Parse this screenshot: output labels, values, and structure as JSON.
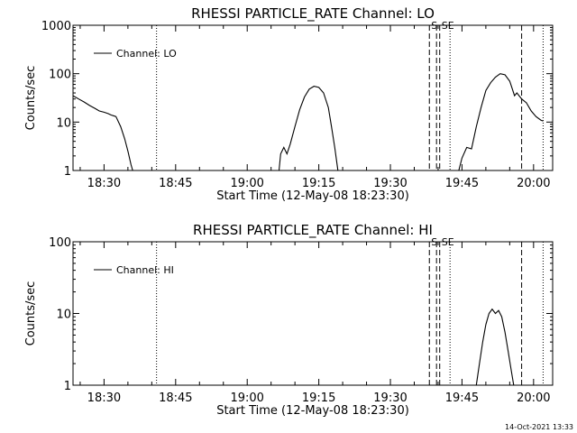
{
  "footer_timestamp": "14-Oct-2021 13:33",
  "chart_data": [
    {
      "type": "line",
      "title": "RHESSI PARTICLE_RATE Channel: LO",
      "xlabel": "Start Time (12-May-08 18:23:30)",
      "ylabel": "Counts/sec",
      "y_scale": "log",
      "ylim": [
        1,
        1000
      ],
      "xlim": [
        "18:23:30",
        "20:04:00"
      ],
      "x_ticks": [
        "18:30",
        "18:45",
        "19:00",
        "19:15",
        "19:30",
        "19:45",
        "20:00"
      ],
      "y_ticks": [
        "1",
        "10",
        "100",
        "1000"
      ],
      "legend": {
        "position": "top-left",
        "entries": [
          "Channel: LO"
        ]
      },
      "annotations": [
        {
          "label": "S",
          "x": "19:38:10"
        },
        {
          "label": "SE",
          "x": "19:40:20"
        }
      ],
      "vlines": [
        {
          "x": "18:41:00",
          "style": "dotted"
        },
        {
          "x": "19:38:10",
          "style": "dashed"
        },
        {
          "x": "19:39:40",
          "style": "dashed"
        },
        {
          "x": "19:40:20",
          "style": "dashed"
        },
        {
          "x": "19:42:30",
          "style": "dotted"
        },
        {
          "x": "19:57:30",
          "style": "dashed"
        },
        {
          "x": "20:02:00",
          "style": "dotted"
        }
      ],
      "series": [
        {
          "name": "Channel: LO",
          "segments": [
            [
              [
                "18:23:30",
                35
              ],
              [
                "18:24:40",
                30
              ],
              [
                "18:25:50",
                26
              ],
              [
                "18:27:00",
                22
              ],
              [
                "18:28:10",
                19
              ],
              [
                "18:29:00",
                17
              ],
              [
                "18:30:00",
                16
              ],
              [
                "18:30:50",
                15
              ],
              [
                "18:31:30",
                14
              ],
              [
                "18:32:30",
                13
              ],
              [
                "18:33:30",
                8
              ],
              [
                "18:34:20",
                4.5
              ],
              [
                "18:35:00",
                2.5
              ],
              [
                "18:35:40",
                1.3
              ],
              [
                "18:36:00",
                1
              ]
            ],
            [
              [
                "19:06:40",
                1
              ],
              [
                "19:07:00",
                2.2
              ],
              [
                "19:07:40",
                3
              ],
              [
                "19:08:20",
                2.2
              ],
              [
                "19:09:00",
                3.5
              ],
              [
                "19:10:00",
                8
              ],
              [
                "19:11:00",
                18
              ],
              [
                "19:12:00",
                33
              ],
              [
                "19:13:00",
                48
              ],
              [
                "19:14:00",
                55
              ],
              [
                "19:15:00",
                52
              ],
              [
                "19:16:00",
                40
              ],
              [
                "19:17:00",
                20
              ],
              [
                "19:17:40",
                8
              ],
              [
                "19:18:20",
                3
              ],
              [
                "19:19:00",
                1
              ]
            ],
            [
              [
                "19:44:20",
                1
              ],
              [
                "19:45:00",
                1.8
              ],
              [
                "19:46:00",
                3
              ],
              [
                "19:47:00",
                2.8
              ],
              [
                "19:48:00",
                8
              ],
              [
                "19:49:00",
                20
              ],
              [
                "19:50:00",
                45
              ],
              [
                "19:51:00",
                65
              ],
              [
                "19:52:00",
                85
              ],
              [
                "19:53:00",
                100
              ],
              [
                "19:54:00",
                95
              ],
              [
                "19:55:00",
                70
              ],
              [
                "19:55:30",
                50
              ],
              [
                "19:56:00",
                35
              ],
              [
                "19:56:30",
                40
              ],
              [
                "19:57:30",
                30
              ],
              [
                "19:58:30",
                25
              ],
              [
                "19:59:30",
                17
              ],
              [
                "20:00:30",
                13
              ],
              [
                "20:01:30",
                11
              ],
              [
                "20:02:00",
                10.5
              ]
            ]
          ]
        }
      ]
    },
    {
      "type": "line",
      "title": "RHESSI PARTICLE_RATE Channel: HI",
      "xlabel": "Start Time (12-May-08 18:23:30)",
      "ylabel": "Counts/sec",
      "y_scale": "log",
      "ylim": [
        1,
        100
      ],
      "xlim": [
        "18:23:30",
        "20:04:00"
      ],
      "x_ticks": [
        "18:30",
        "18:45",
        "19:00",
        "19:15",
        "19:30",
        "19:45",
        "20:00"
      ],
      "y_ticks": [
        "1",
        "10",
        "100"
      ],
      "legend": {
        "position": "top-left",
        "entries": [
          "Channel: HI"
        ]
      },
      "annotations": [
        {
          "label": "S",
          "x": "19:38:10"
        },
        {
          "label": "SE",
          "x": "19:40:20"
        }
      ],
      "vlines": [
        {
          "x": "18:41:00",
          "style": "dotted"
        },
        {
          "x": "19:38:10",
          "style": "dashed"
        },
        {
          "x": "19:39:40",
          "style": "dashed"
        },
        {
          "x": "19:40:20",
          "style": "dashed"
        },
        {
          "x": "19:42:30",
          "style": "dotted"
        },
        {
          "x": "19:57:30",
          "style": "dashed"
        },
        {
          "x": "20:02:00",
          "style": "dotted"
        }
      ],
      "series": [
        {
          "name": "Channel: HI",
          "segments": [
            [
              [
                "19:48:00",
                1
              ],
              [
                "19:48:40",
                2
              ],
              [
                "19:49:20",
                4
              ],
              [
                "19:50:00",
                7
              ],
              [
                "19:50:40",
                10
              ],
              [
                "19:51:20",
                11.5
              ],
              [
                "19:52:00",
                10
              ],
              [
                "19:52:40",
                11
              ],
              [
                "19:53:20",
                9
              ],
              [
                "19:54:00",
                5.5
              ],
              [
                "19:54:40",
                3
              ],
              [
                "19:55:20",
                1.6
              ],
              [
                "19:55:50",
                1
              ]
            ]
          ]
        }
      ]
    }
  ]
}
